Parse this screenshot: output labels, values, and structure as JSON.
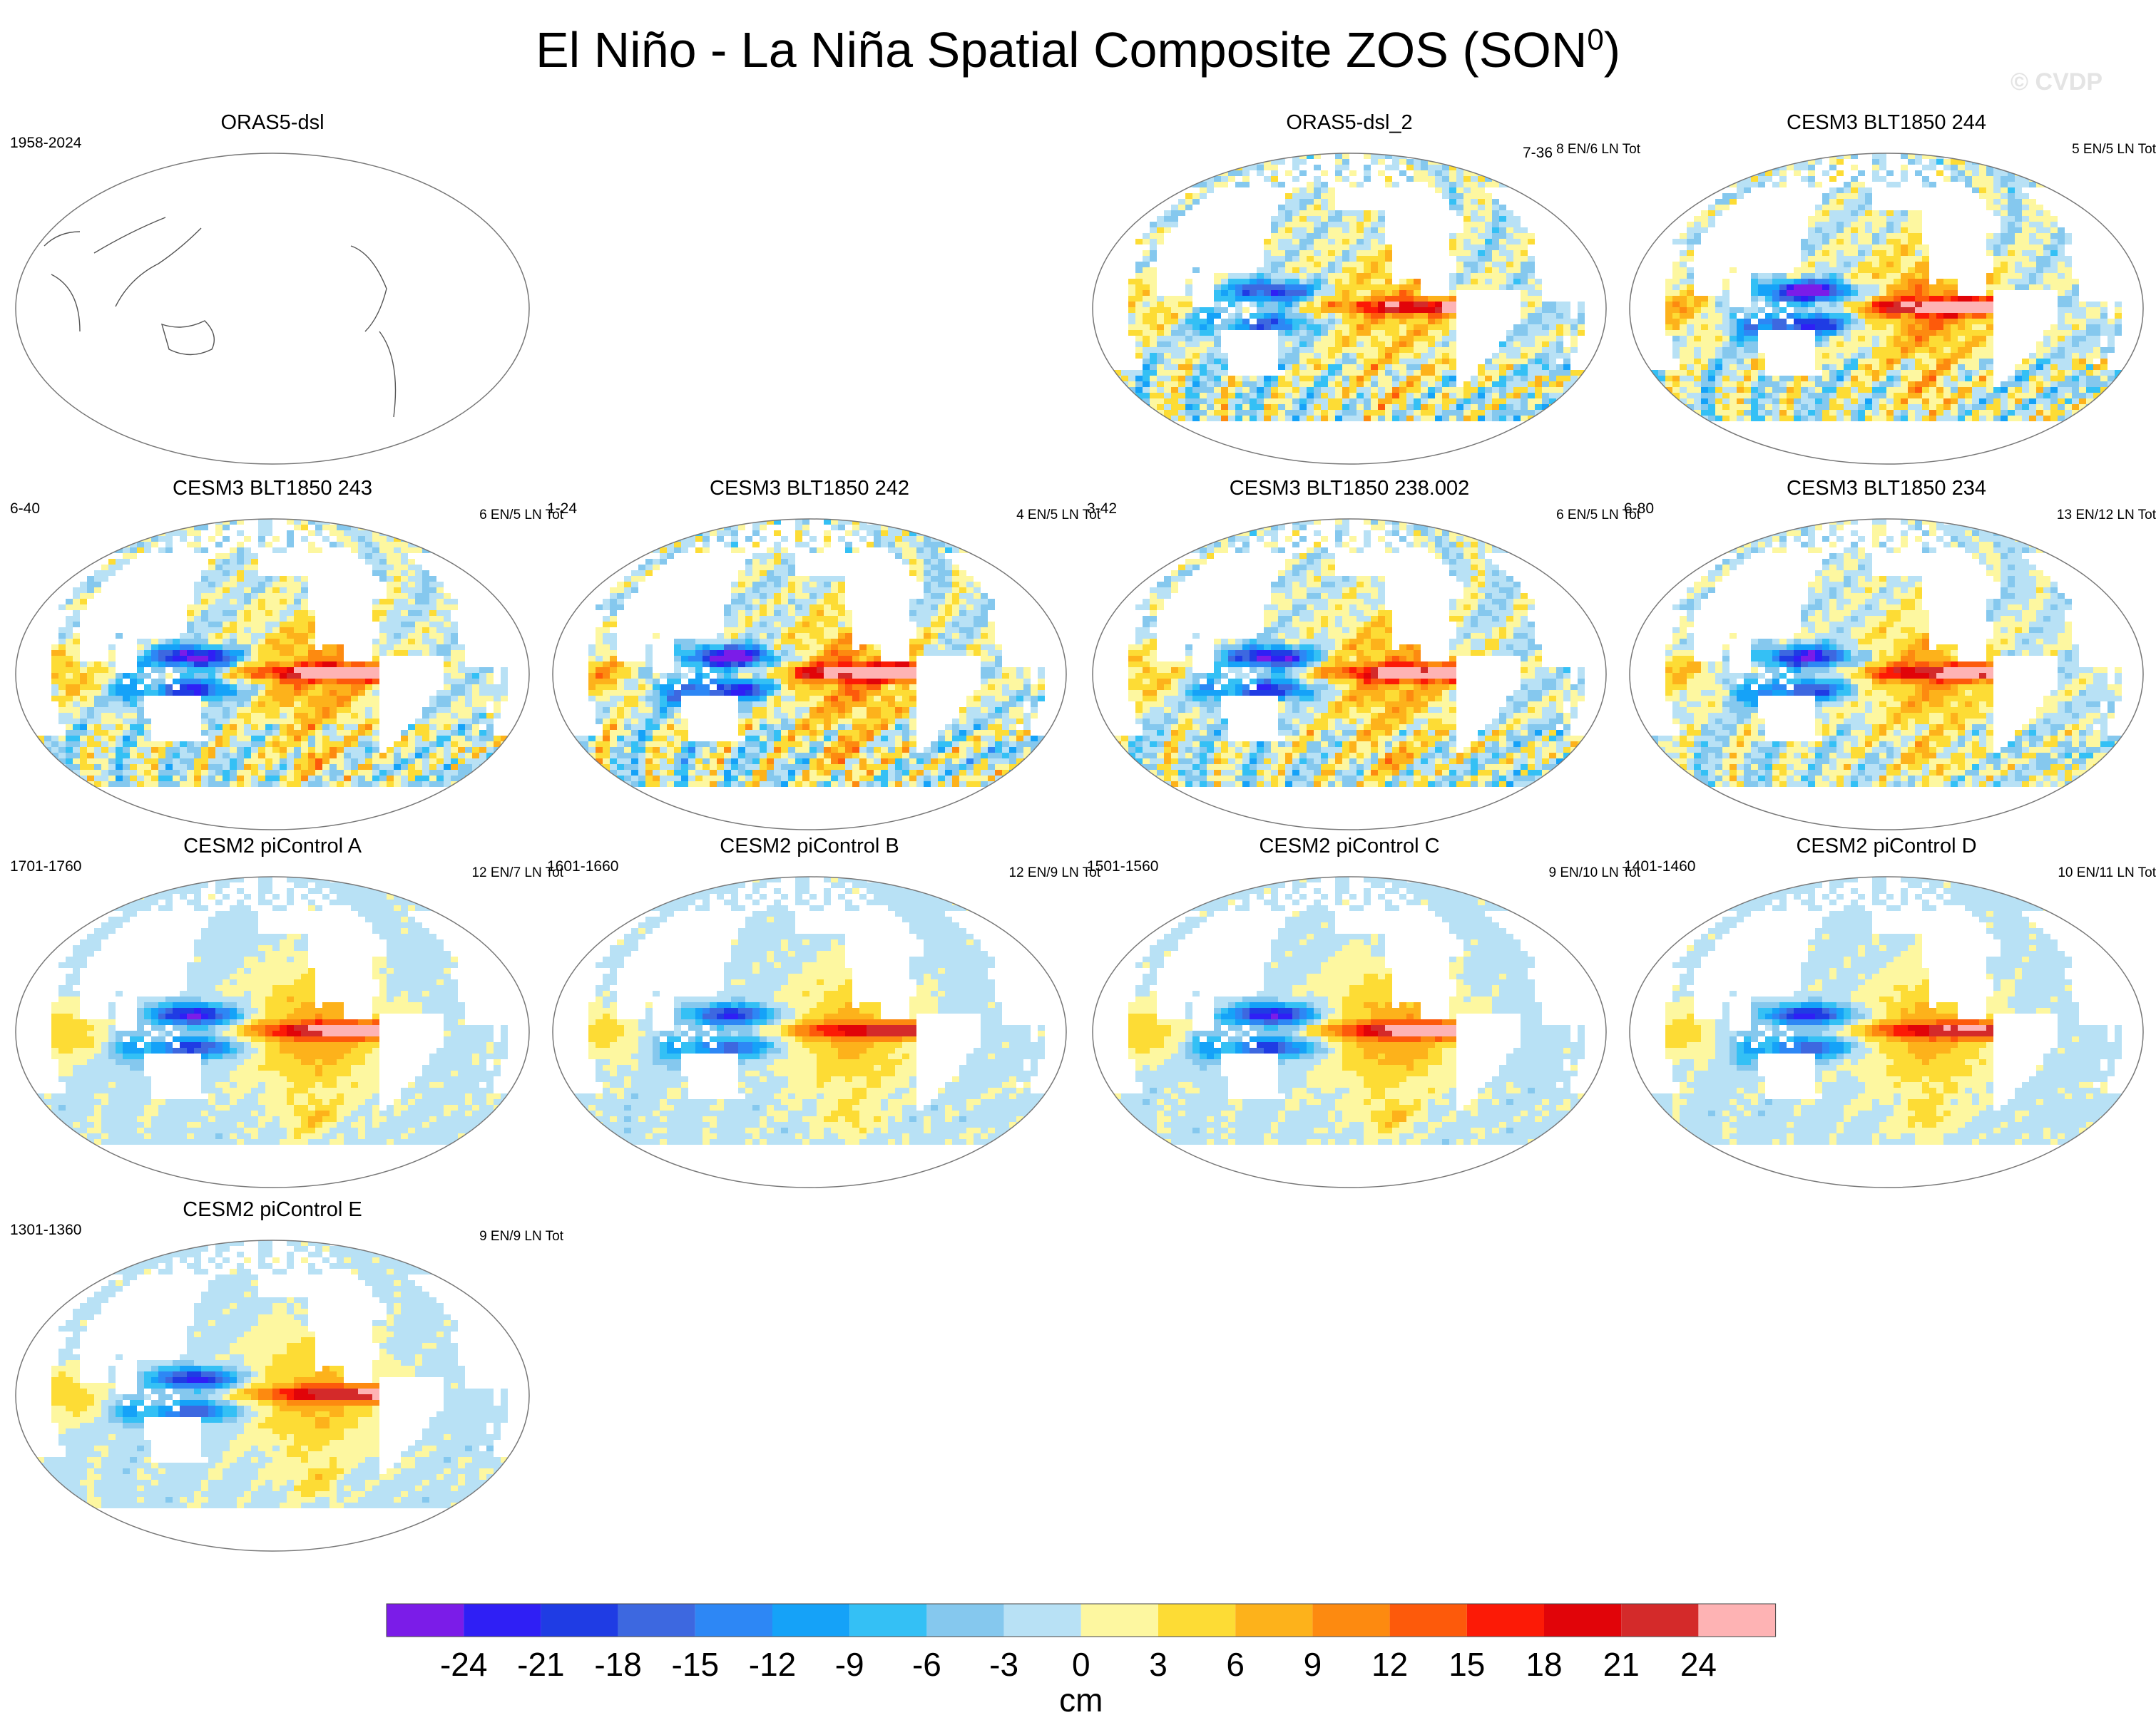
{
  "title_main": "El Niño - La Niña Spatial Composite ZOS (SON",
  "title_sup": "0",
  "title_end": ")",
  "watermark": "© CVDP",
  "chart_data": {
    "type": "heatmap",
    "variable": "ZOS",
    "season": "SON",
    "projection": "Robinson (Pacific-centered)",
    "panels": [
      {
        "id": "orras5-dsl",
        "title": "ORAS5-dsl",
        "years": "1958-2024",
        "counts": "",
        "empty": true
      },
      {
        "id": "oras5-dsl-2",
        "title": "ORAS5-dsl_2",
        "years": "",
        "counts": "8 EN/6 LN Tot",
        "amp": 0.8,
        "noise": 0.55
      },
      {
        "id": "cesm3-244",
        "title": "CESM3 BLT1850 244",
        "years": "7-36",
        "counts": "5 EN/5 LN Tot",
        "amp": 1.15,
        "noise": 0.5
      },
      {
        "id": "cesm3-243",
        "title": "CESM3 BLT1850 243",
        "years": "6-40",
        "counts": "6 EN/5 LN Tot",
        "amp": 1.05,
        "noise": 0.5
      },
      {
        "id": "cesm3-242",
        "title": "CESM3 BLT1850 242",
        "years": "1-24",
        "counts": "4 EN/5 LN Tot",
        "amp": 1.15,
        "noise": 0.6
      },
      {
        "id": "cesm3-238",
        "title": "CESM3 BLT1850 238.002",
        "years": "3-42",
        "counts": "6 EN/5 LN Tot",
        "amp": 1.0,
        "noise": 0.5
      },
      {
        "id": "cesm3-234",
        "title": "CESM3 BLT1850 234",
        "years": "6-80",
        "counts": "13 EN/12 LN Tot",
        "amp": 0.95,
        "noise": 0.4
      },
      {
        "id": "cesm2-a",
        "title": "CESM2 piControl A",
        "years": "1701-1760",
        "counts": "12 EN/7 LN Tot",
        "amp": 0.95,
        "noise": 0.12
      },
      {
        "id": "cesm2-b",
        "title": "CESM2 piControl B",
        "years": "1601-1660",
        "counts": "12 EN/9 LN Tot",
        "amp": 0.8,
        "noise": 0.12
      },
      {
        "id": "cesm2-c",
        "title": "CESM2 piControl C",
        "years": "1501-1560",
        "counts": "9 EN/10 LN Tot",
        "amp": 0.95,
        "noise": 0.12
      },
      {
        "id": "cesm2-d",
        "title": "CESM2 piControl D",
        "years": "1401-1460",
        "counts": "10 EN/11 LN Tot",
        "amp": 0.85,
        "noise": 0.12
      },
      {
        "id": "cesm2-e",
        "title": "CESM2 piControl E",
        "years": "1301-1360",
        "counts": "9 EN/9 LN Tot",
        "amp": 0.85,
        "noise": 0.12
      }
    ],
    "colorbar": {
      "levels": [
        -24,
        -21,
        -18,
        -15,
        -12,
        -9,
        -6,
        -3,
        0,
        3,
        6,
        9,
        12,
        15,
        18,
        21,
        24
      ],
      "colors": [
        "#7b1ce8",
        "#2f1ff5",
        "#1f3ce4",
        "#3d68e0",
        "#2d87f5",
        "#15a2f8",
        "#34c0f5",
        "#85c8ee",
        "#b8e1f5",
        "#fdf7a0",
        "#fddc35",
        "#fdb21b",
        "#fd8a10",
        "#fd5a0b",
        "#fc1a06",
        "#e10409",
        "#d42a2a",
        "#feb3b4"
      ],
      "label": "cm"
    }
  }
}
